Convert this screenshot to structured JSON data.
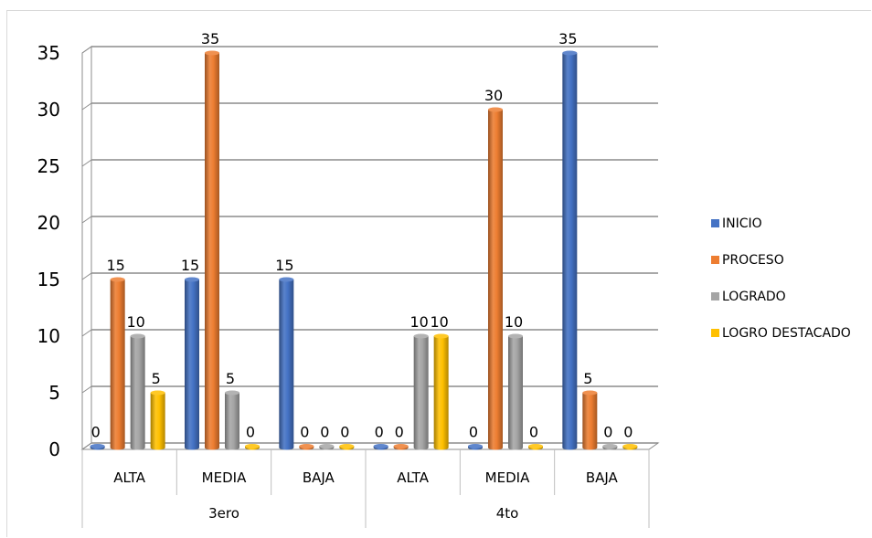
{
  "chart_data": {
    "type": "bar",
    "subtype": "3d-clustered-cylinder",
    "title": "",
    "xlabel": "",
    "ylabel": "",
    "ylim": [
      0,
      35
    ],
    "yticks": [
      0,
      5,
      10,
      15,
      20,
      25,
      30,
      35
    ],
    "grid": true,
    "legend_position": "right",
    "groups": [
      {
        "name": "3ero",
        "categories": [
          "ALTA",
          "MEDIA",
          "BAJA"
        ]
      },
      {
        "name": "4to",
        "categories": [
          "ALTA",
          "MEDIA",
          "BAJA"
        ]
      }
    ],
    "categories": [
      "ALTA",
      "MEDIA",
      "BAJA",
      "ALTA",
      "MEDIA",
      "BAJA"
    ],
    "series": [
      {
        "name": "INICIO",
        "color": "#4472C4",
        "values": [
          0,
          15,
          15,
          0,
          0,
          35
        ]
      },
      {
        "name": "PROCESO",
        "color": "#ED7D31",
        "values": [
          15,
          35,
          0,
          0,
          30,
          5
        ]
      },
      {
        "name": "LOGRADO",
        "color": "#A5A5A5",
        "values": [
          10,
          5,
          0,
          10,
          10,
          0
        ]
      },
      {
        "name": "LOGRO DESTACADO",
        "color": "#FFC000",
        "values": [
          5,
          0,
          0,
          10,
          0,
          0
        ]
      }
    ]
  }
}
